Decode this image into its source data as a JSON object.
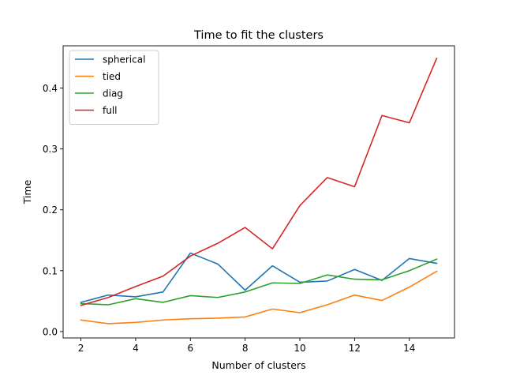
{
  "chart_data": {
    "type": "line",
    "title": "Time to fit the clusters",
    "xlabel": "Number of clusters",
    "ylabel": "Time",
    "xlim": [
      1.35,
      15.65
    ],
    "ylim": [
      -0.0105,
      0.4695
    ],
    "xticks": [
      2,
      4,
      6,
      8,
      10,
      12,
      14
    ],
    "yticks": [
      0.0,
      0.1,
      0.2,
      0.3,
      0.4
    ],
    "ytick_labels": [
      "0.0",
      "0.1",
      "0.2",
      "0.3",
      "0.4"
    ],
    "grid": false,
    "legend_position": "top-left",
    "x": [
      2,
      3,
      4,
      5,
      6,
      7,
      8,
      9,
      10,
      11,
      12,
      13,
      14,
      15
    ],
    "series": [
      {
        "name": "spherical",
        "color": "#1f77b4",
        "values": [
          0.048,
          0.06,
          0.057,
          0.065,
          0.129,
          0.111,
          0.068,
          0.108,
          0.081,
          0.083,
          0.102,
          0.084,
          0.12,
          0.112
        ]
      },
      {
        "name": "tied",
        "color": "#ff7f0e",
        "values": [
          0.019,
          0.013,
          0.015,
          0.019,
          0.021,
          0.022,
          0.024,
          0.037,
          0.031,
          0.044,
          0.06,
          0.051,
          0.073,
          0.099
        ]
      },
      {
        "name": "diag",
        "color": "#2ca02c",
        "values": [
          0.046,
          0.044,
          0.054,
          0.048,
          0.059,
          0.056,
          0.065,
          0.08,
          0.079,
          0.093,
          0.086,
          0.085,
          0.1,
          0.119
        ]
      },
      {
        "name": "full",
        "color": "#d62728",
        "values": [
          0.043,
          0.056,
          0.074,
          0.091,
          0.124,
          0.145,
          0.171,
          0.136,
          0.207,
          0.253,
          0.238,
          0.355,
          0.343,
          0.449
        ]
      }
    ]
  }
}
